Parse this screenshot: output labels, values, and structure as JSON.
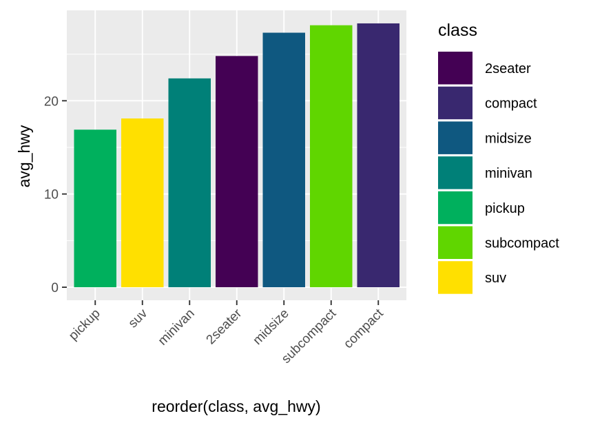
{
  "chart_data": {
    "type": "bar",
    "xlabel": "reorder(class, avg_hwy)",
    "ylabel": "avg_hwy",
    "categories": [
      "pickup",
      "suv",
      "minivan",
      "2seater",
      "midsize",
      "subcompact",
      "compact"
    ],
    "values": [
      16.9,
      18.1,
      22.4,
      24.8,
      27.3,
      28.1,
      28.3
    ],
    "ylim": [
      -1.4,
      29.7
    ],
    "yticks": [
      0,
      10,
      20
    ],
    "grid": true,
    "legend": {
      "title": "class",
      "placement": "right",
      "entries": [
        "2seater",
        "compact",
        "midsize",
        "minivan",
        "pickup",
        "subcompact",
        "suv"
      ]
    },
    "colors": {
      "2seater": "#440154",
      "compact": "#39286f",
      "midsize": "#0f5880",
      "minivan": "#008078",
      "pickup": "#00b05d",
      "subcompact": "#60d600",
      "suv": "#ffe000"
    },
    "panel_background": "#ebebeb",
    "grid_color": "#ffffff"
  }
}
